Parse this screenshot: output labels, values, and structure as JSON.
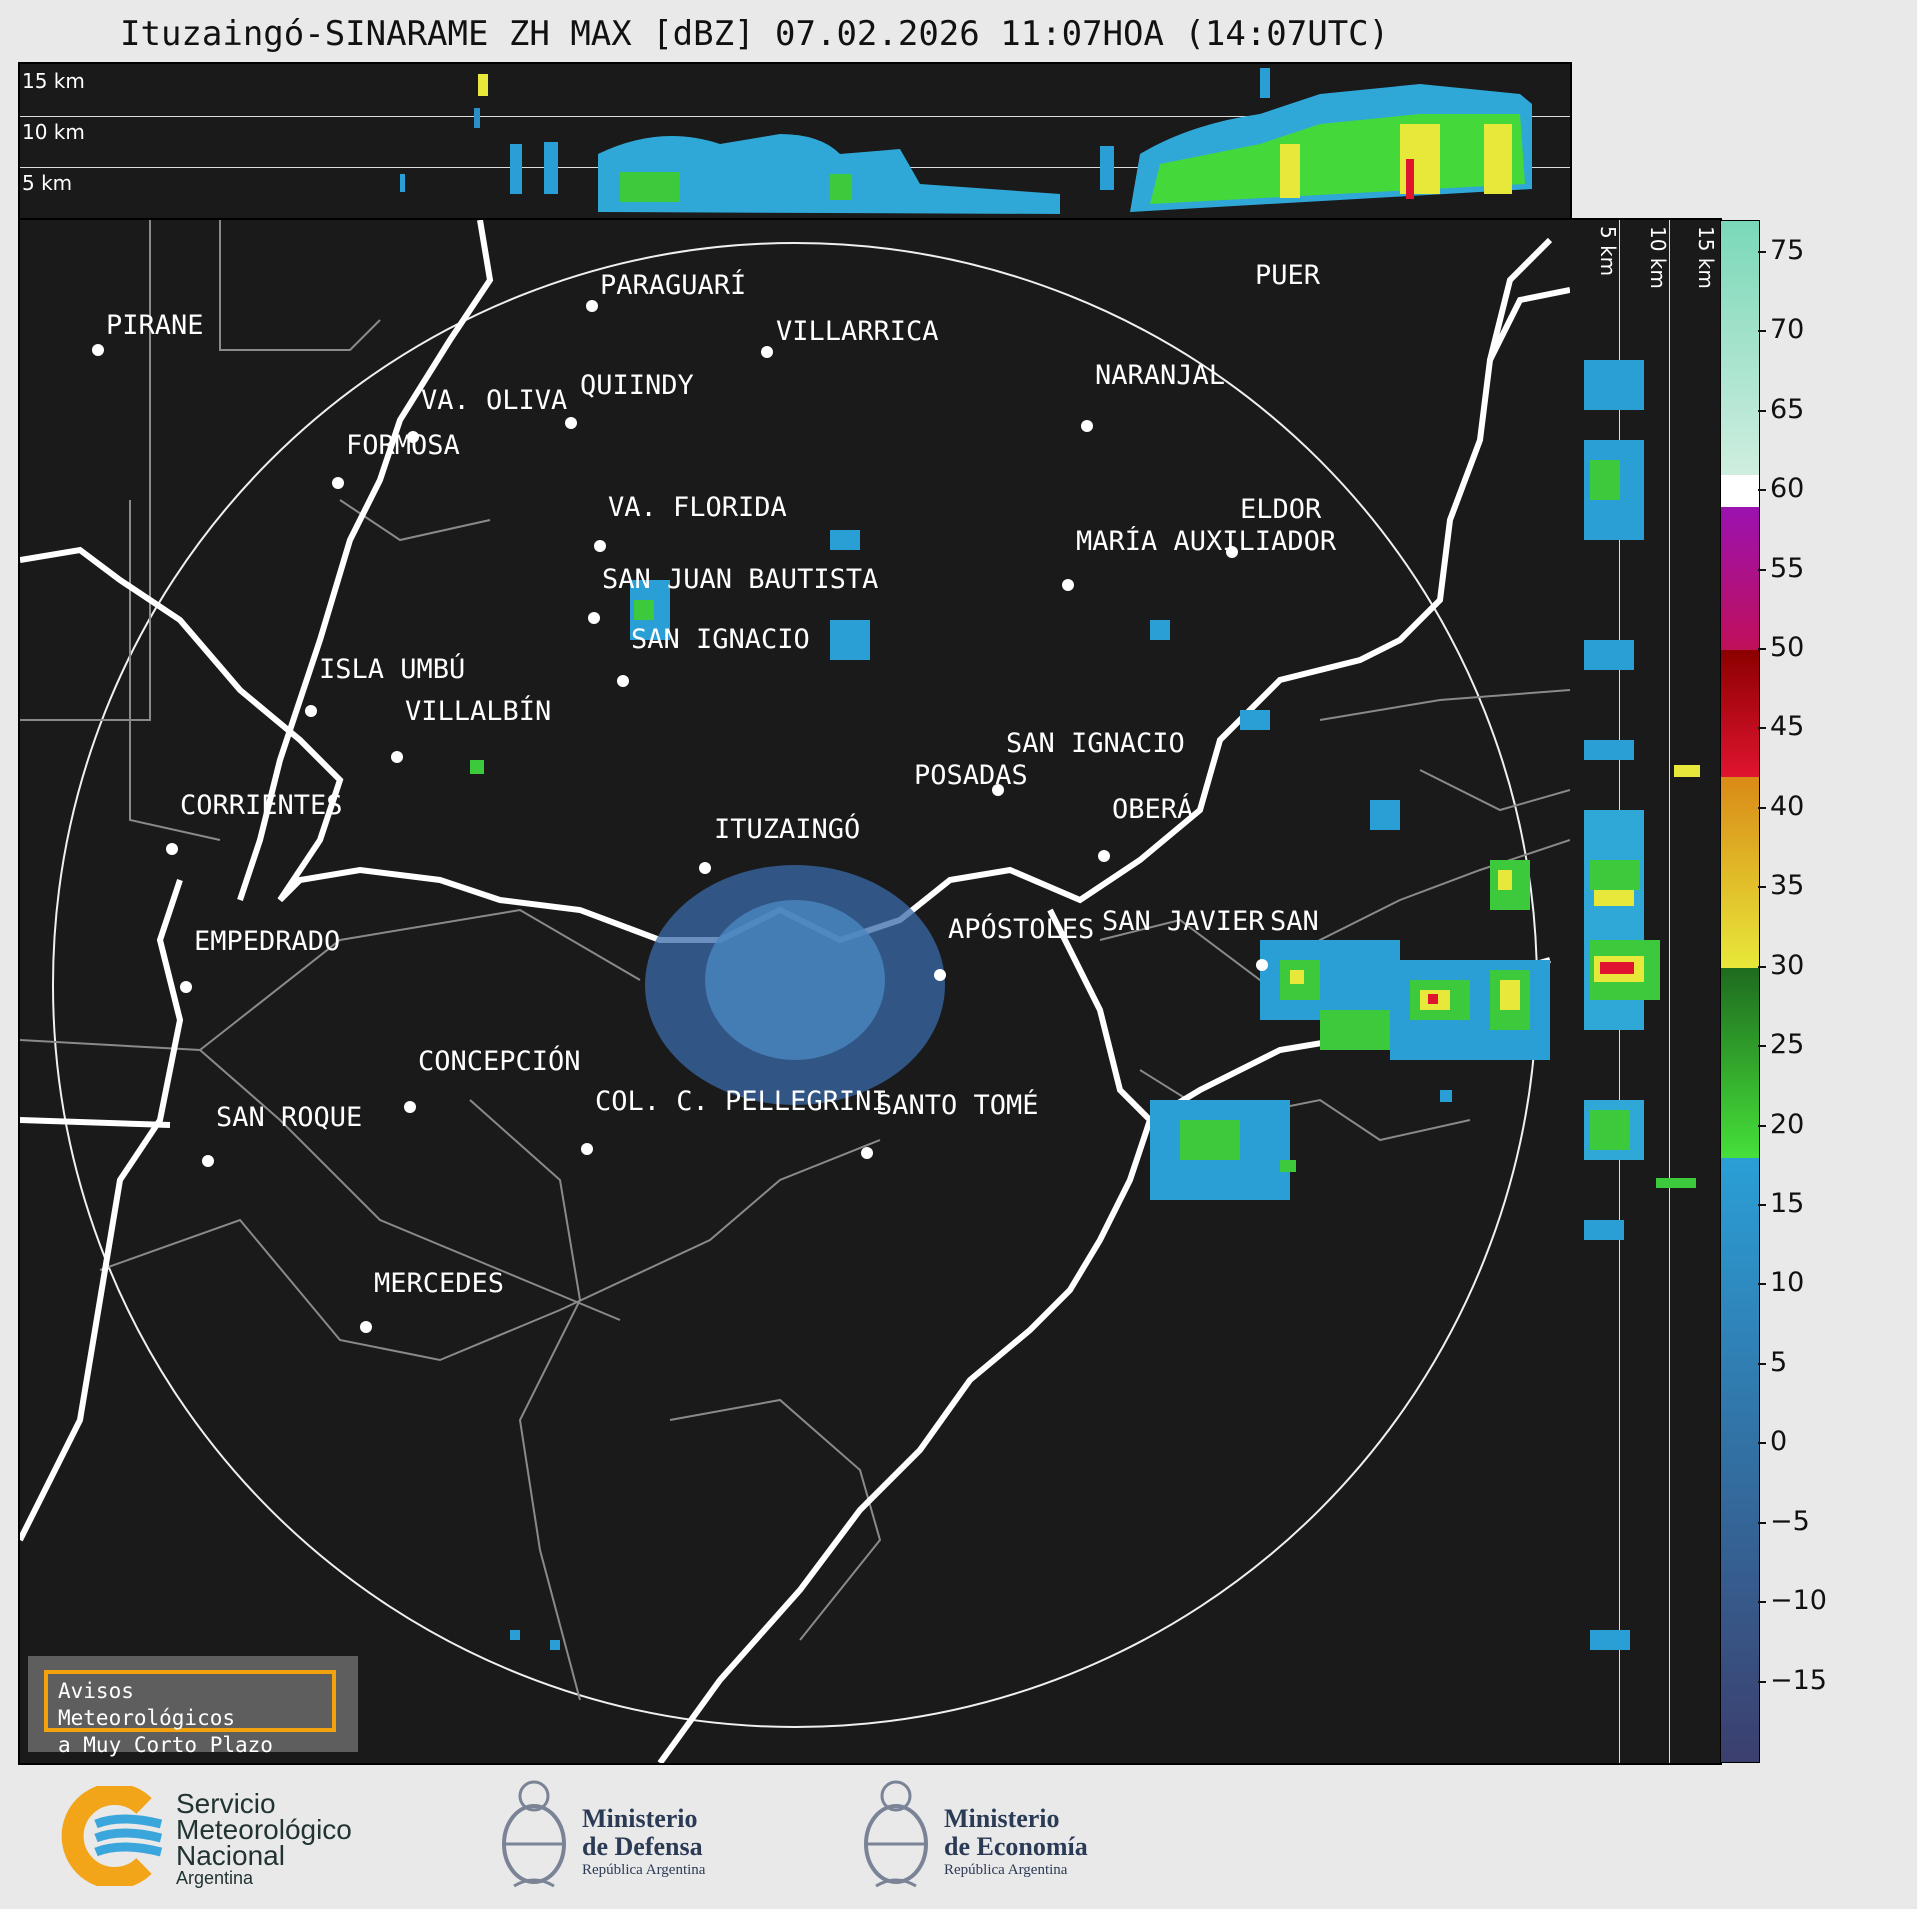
{
  "title": "Ituzaingó-SINARAME ZH MAX [dBZ] 07.02.2026 11:07HOA (14:07UTC)",
  "height_labels": [
    "15 km",
    "10 km",
    "5 km"
  ],
  "cities": [
    {
      "name": "PIRANE"
    },
    {
      "name": "PARAGUARÍ"
    },
    {
      "name": "VILLARRICA"
    },
    {
      "name": "QUIINDY"
    },
    {
      "name": "VA. OLIVA"
    },
    {
      "name": "NARANJAL"
    },
    {
      "name": "FORMOSA"
    },
    {
      "name": "PUER"
    },
    {
      "name": "VA. FLORIDA"
    },
    {
      "name": "ELDOR"
    },
    {
      "name": "MARÍA AUXILIADOR"
    },
    {
      "name": "SAN JUAN BAUTISTA"
    },
    {
      "name": "SAN IGNACIO"
    },
    {
      "name": "ISLA UMBÚ"
    },
    {
      "name": "VILLALBÍN"
    },
    {
      "name": "SAN IGNACIO"
    },
    {
      "name": "POSADAS"
    },
    {
      "name": "CORRIENTES"
    },
    {
      "name": "ITUZAINGÓ"
    },
    {
      "name": "OBERÁ"
    },
    {
      "name": "EMPEDRADO"
    },
    {
      "name": "APÓSTOLES"
    },
    {
      "name": "SAN JAVIER"
    },
    {
      "name": "SAN"
    },
    {
      "name": "CONCEPCIÓN"
    },
    {
      "name": "COL. C. PELLEGRINI"
    },
    {
      "name": "SANTO TOMÉ"
    },
    {
      "name": "SAN ROQUE"
    },
    {
      "name": "MERCEDES"
    }
  ],
  "colorbar": {
    "unit": "dBZ",
    "min": -20,
    "max": 77,
    "tick_labels": [
      "75",
      "70",
      "65",
      "60",
      "55",
      "50",
      "45",
      "40",
      "35",
      "30",
      "25",
      "20",
      "15",
      "10",
      "5",
      "0",
      "−5",
      "−10",
      "−15"
    ],
    "tick_values": [
      75,
      70,
      65,
      60,
      55,
      50,
      45,
      40,
      35,
      30,
      25,
      20,
      15,
      10,
      5,
      0,
      -5,
      -10,
      -15
    ],
    "bands": [
      {
        "from": -20,
        "to": 18,
        "color_start": "#3b3f6e",
        "color_end": "#2a9fd6"
      },
      {
        "from": 18,
        "to": 30,
        "color_start": "#46e03a",
        "color_end": "#1e6b1e"
      },
      {
        "from": 30,
        "to": 42,
        "color_start": "#e8e83a",
        "color_end": "#d98a16"
      },
      {
        "from": 42,
        "to": 50,
        "color_start": "#e0142e",
        "color_end": "#8b0000"
      },
      {
        "from": 50,
        "to": 59,
        "color_start": "#c0105a",
        "color_end": "#9b12b0"
      },
      {
        "from": 59,
        "to": 61,
        "color_start": "#ffffff",
        "color_end": "#ffffff"
      },
      {
        "from": 61,
        "to": 77,
        "color_start": "#cfeee0",
        "color_end": "#7ad8b8"
      }
    ]
  },
  "warning_button": {
    "line1": "Avisos Meteorológicos",
    "line2": "a Muy Corto Plazo"
  },
  "logos": {
    "smn": {
      "line1": "Servicio",
      "line2": "Meteorológico",
      "line3": "Nacional",
      "line4": "Argentina"
    },
    "defensa": {
      "line1": "Ministerio",
      "line2": "de Defensa",
      "line3": "República Argentina"
    },
    "economia": {
      "line1": "Ministerio",
      "line2": "de Economía",
      "line3": "República Argentina"
    }
  }
}
